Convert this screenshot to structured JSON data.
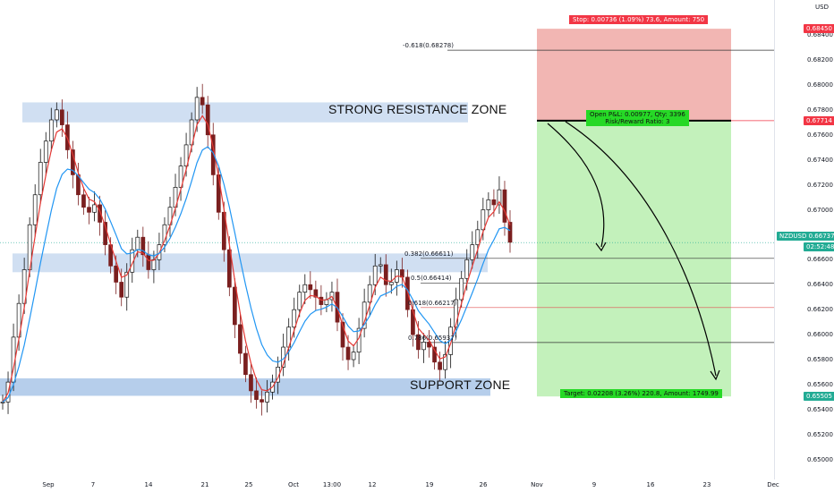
{
  "chart_data": {
    "type": "candlestick",
    "symbol": "NZDUSD",
    "currency": "USD",
    "last_price": "0.66737",
    "countdown": "02:52:48",
    "y_ticks": [
      "0.68400",
      "0.68200",
      "0.68000",
      "0.67800",
      "0.67600",
      "0.67400",
      "0.67200",
      "0.67000",
      "0.66800",
      "0.66600",
      "0.66400",
      "0.66200",
      "0.66000",
      "0.65800",
      "0.65600",
      "0.65400",
      "0.65200",
      "0.65000"
    ],
    "x_ticks": [
      "Sep",
      "7",
      "14",
      "21",
      "25",
      "Oct",
      "13:00",
      "12",
      "19",
      "26",
      "Nov",
      "9",
      "16",
      "23",
      "Dec"
    ],
    "ylim": [
      0.6484,
      0.6868
    ],
    "price_series": [
      0.6546,
      0.6562,
      0.6598,
      0.6625,
      0.6652,
      0.6688,
      0.6712,
      0.6738,
      0.6755,
      0.6772,
      0.678,
      0.6768,
      0.6748,
      0.6728,
      0.6712,
      0.6702,
      0.6698,
      0.6704,
      0.669,
      0.6672,
      0.6655,
      0.6642,
      0.663,
      0.665,
      0.6668,
      0.6678,
      0.6664,
      0.6652,
      0.666,
      0.6672,
      0.6688,
      0.6702,
      0.6718,
      0.6735,
      0.6752,
      0.6772,
      0.679,
      0.6784,
      0.676,
      0.6728,
      0.6698,
      0.6668,
      0.6638,
      0.6608,
      0.6585,
      0.6568,
      0.6555,
      0.6548,
      0.6546,
      0.6554,
      0.6562,
      0.6574,
      0.659,
      0.6606,
      0.662,
      0.6634,
      0.664,
      0.6636,
      0.663,
      0.6624,
      0.6628,
      0.6634,
      0.661,
      0.659,
      0.658,
      0.6586,
      0.6605,
      0.6626,
      0.664,
      0.6655,
      0.6656,
      0.664,
      0.6642,
      0.6652,
      0.6646,
      0.662,
      0.66,
      0.6588,
      0.6594,
      0.659,
      0.6578,
      0.6572,
      0.6584,
      0.6606,
      0.6628,
      0.6645,
      0.666,
      0.6672,
      0.6684,
      0.67,
      0.6708,
      0.6704,
      0.6716,
      0.669,
      0.6674
    ],
    "resistance_zone": {
      "label": "STRONG RESISTANCE ZONE",
      "low": 0.677,
      "high": 0.6786
    },
    "middle_zone": {
      "low": 0.665,
      "high": 0.6665
    },
    "support_zone": {
      "label": "SUPPORT ZONE",
      "low": 0.6551,
      "high": 0.6565
    },
    "fib_levels": [
      {
        "label": "-0.618(0.68278)",
        "value": 0.68278
      },
      {
        "label": "0.382(0.66611)",
        "value": 0.66611
      },
      {
        "label": "0.5(0.66414)",
        "value": 0.66414
      },
      {
        "label": "0.618(0.66217)",
        "value": 0.66217
      },
      {
        "label": "0.786(0.65937)",
        "value": 0.65937
      }
    ],
    "position": {
      "entry": 0.67714,
      "stop": 0.6845,
      "target": 0.65505,
      "stop_label": "Stop: 0.00736 (1.09%) 73.6, Amount: 750",
      "open_label": "Open P&L: 0.00977, Qty: 3396",
      "ratio_label": "Risk/Reward Ratio: 3",
      "target_label": "Target: 0.02208 (3.26%) 220.8, Amount: 1749.99"
    },
    "price_badges": [
      {
        "text": "0.68450",
        "value": 0.6845,
        "color": "#f23645"
      },
      {
        "text": "0.67714",
        "value": 0.67714,
        "color": "#f23645"
      },
      {
        "text": "0.65505",
        "value": 0.65505,
        "color": "#22ab94"
      }
    ],
    "colors": {
      "up": "#111111",
      "down": "#7a1f1f",
      "ema_fast": "#e53935",
      "ema_slow": "#2196f3",
      "stop_fill": "#f0a9a6",
      "target_fill": "#bdf0b4",
      "zone_fill": "#a9c5e8",
      "badge_green": "#22ab94"
    }
  }
}
